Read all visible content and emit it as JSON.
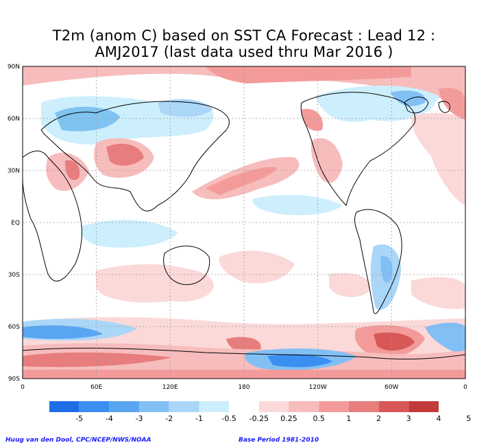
{
  "title": {
    "line1": "T2m (anom C) based on SST CA Forecast : Lead 12 :",
    "line2": "AMJ2017 (last data used thru Mar 2016 )"
  },
  "map": {
    "lat_labels": [
      "90N",
      "60N",
      "30N",
      "EQ",
      "30S",
      "60S",
      "90S"
    ],
    "lon_labels": [
      "0",
      "60E",
      "120E",
      "180",
      "120W",
      "60W",
      "0"
    ]
  },
  "legend": {
    "labels": [
      "-5",
      "-4",
      "-3",
      "-2",
      "-1",
      "-0.5",
      "-0.25",
      "0.25",
      "0.5",
      "1",
      "2",
      "3",
      "4",
      "5"
    ],
    "colors": [
      "#1e6fe6",
      "#3a8ff0",
      "#5aa5f2",
      "#82bff5",
      "#aad6f8",
      "#cdeefc",
      "#ffffff",
      "#fbd9d9",
      "#f7bcbc",
      "#f39b9b",
      "#e77d7d",
      "#d85757",
      "#c23a3a"
    ]
  },
  "credits": {
    "left": "Huug van den Dool, CPC/NCEP/NWS/NOAA",
    "right": "Base Period 1981-2010"
  },
  "palette": {
    "warm_light": "#fbd9d9",
    "warm_mid": "#f3a5a5",
    "warm_dark": "#d85757",
    "cool_light": "#cdeefc",
    "cool_mid": "#7fc3f0",
    "cool_dark": "#3a8ff0"
  }
}
